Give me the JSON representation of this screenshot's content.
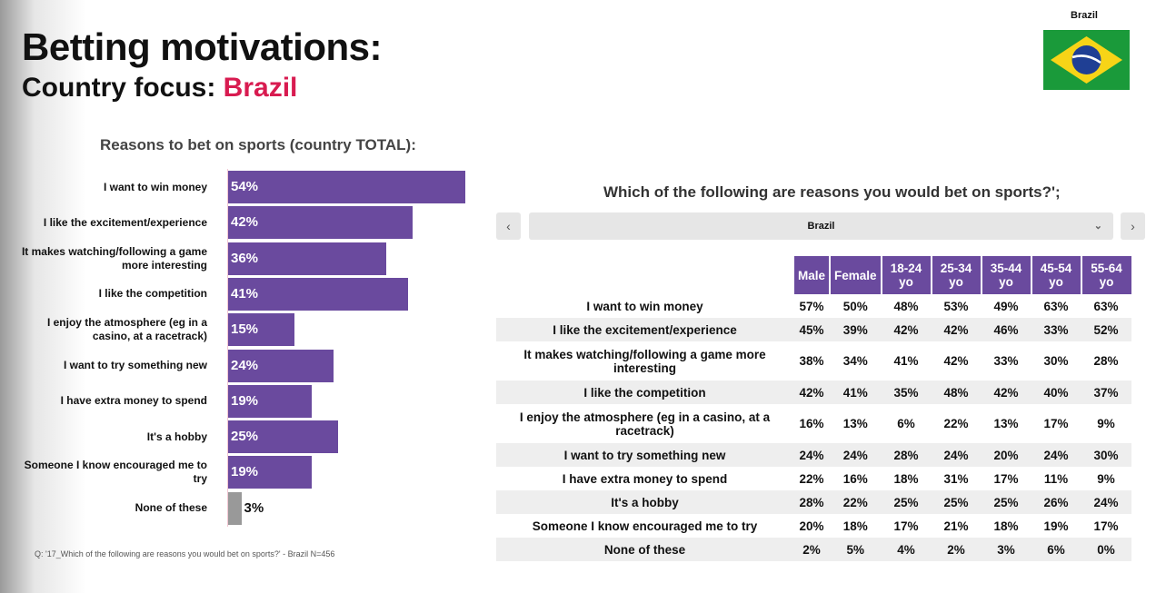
{
  "title": "Betting motivations:",
  "subtitle_prefix": "Country focus: ",
  "subtitle_country": "Brazil",
  "flag_label": "Brazil",
  "colors": {
    "accent": "#d81b50",
    "bar": "#6a4a9e",
    "none_bar": "#999999"
  },
  "chart_data": {
    "type": "bar",
    "title": "Reasons to bet on sports (country TOTAL):",
    "categories": [
      "I want to win money",
      "I like the excitement/experience",
      "It makes watching/following a game more interesting",
      "I like the competition",
      "I enjoy the atmosphere (eg in a casino, at a racetrack)",
      "I want to try something new",
      "I have extra money to spend",
      "It's a hobby",
      "Someone I know encouraged me to try",
      "None of these"
    ],
    "values": [
      54,
      42,
      36,
      41,
      15,
      24,
      19,
      25,
      19,
      3
    ],
    "labels": [
      "54%",
      "42%",
      "36%",
      "41%",
      "15%",
      "24%",
      "19%",
      "25%",
      "19%",
      "3%"
    ],
    "orientation": "horizontal",
    "xlim": [
      0,
      54
    ]
  },
  "footnote": "Q: '17_Which of the following are reasons you would bet on sports?' - Brazil N=456",
  "table": {
    "title": "Which of the following are reasons you would bet on sports?';",
    "prev": "‹",
    "next": "›",
    "selected": "Brazil",
    "chevron": "⌄",
    "headers": [
      "Male",
      "Female",
      "18-24 yo",
      "25-34 yo",
      "35-44 yo",
      "45-54 yo",
      "55-64 yo"
    ],
    "rows": [
      {
        "label": "I want to win money",
        "values": [
          "57%",
          "50%",
          "48%",
          "53%",
          "49%",
          "63%",
          "63%"
        ]
      },
      {
        "label": "I like the excitement/experience",
        "values": [
          "45%",
          "39%",
          "42%",
          "42%",
          "46%",
          "33%",
          "52%"
        ]
      },
      {
        "label": "It makes watching/following a game more interesting",
        "values": [
          "38%",
          "34%",
          "41%",
          "42%",
          "33%",
          "30%",
          "28%"
        ]
      },
      {
        "label": "I like the competition",
        "values": [
          "42%",
          "41%",
          "35%",
          "48%",
          "42%",
          "40%",
          "37%"
        ]
      },
      {
        "label": "I enjoy the atmosphere (eg in a casino, at a racetrack)",
        "values": [
          "16%",
          "13%",
          "6%",
          "22%",
          "13%",
          "17%",
          "9%"
        ]
      },
      {
        "label": "I want to try something new",
        "values": [
          "24%",
          "24%",
          "28%",
          "24%",
          "20%",
          "24%",
          "30%"
        ]
      },
      {
        "label": "I have extra money to spend",
        "values": [
          "22%",
          "16%",
          "18%",
          "31%",
          "17%",
          "11%",
          "9%"
        ]
      },
      {
        "label": "It's a hobby",
        "values": [
          "28%",
          "22%",
          "25%",
          "25%",
          "25%",
          "26%",
          "24%"
        ]
      },
      {
        "label": "Someone I know encouraged me to try",
        "values": [
          "20%",
          "18%",
          "17%",
          "21%",
          "18%",
          "19%",
          "17%"
        ]
      },
      {
        "label": "None of these",
        "values": [
          "2%",
          "5%",
          "4%",
          "2%",
          "3%",
          "6%",
          "0%"
        ]
      }
    ]
  }
}
